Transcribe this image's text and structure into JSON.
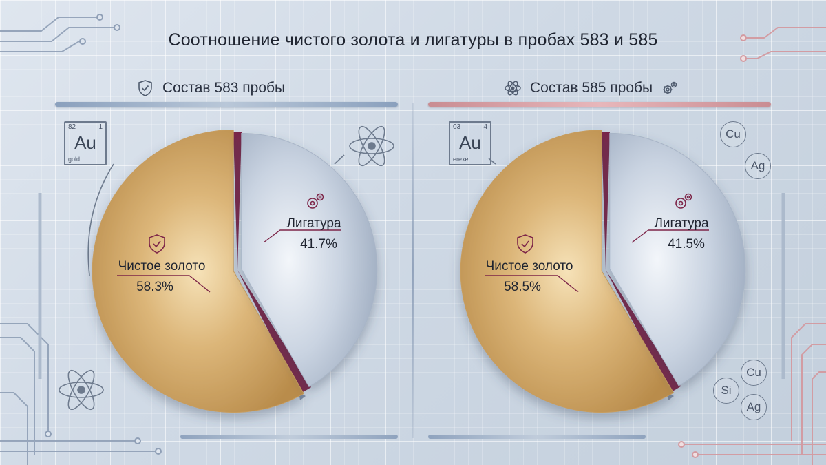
{
  "title": "Соотношение чистого золота и лигатуры в пробах 583 и 585",
  "colors": {
    "gold": "#d9b274",
    "alloy": "#c5d0df",
    "separator": "#7d2548",
    "accent_left": "#8aa0bd",
    "accent_right": "#c98c92"
  },
  "panels": [
    {
      "header": "Состав 583 пробы",
      "header_icon": "shield-check-icon",
      "element_box": {
        "number": "82",
        "weight": "1",
        "symbol": "Au",
        "name": "gold"
      }
    },
    {
      "header": "Состав 585 пробы",
      "header_icon": "atom-icon",
      "header_icon_right": "gears-icon",
      "element_box": {
        "number": "03",
        "weight": "4",
        "symbol": "Au",
        "name": "erexe"
      }
    }
  ],
  "chemical_symbols": {
    "top_right": [
      "Cu",
      "Ag"
    ],
    "bottom_right": [
      "Cu",
      "Si",
      "Ag"
    ]
  },
  "chart_data": [
    {
      "type": "pie",
      "title": "Состав 583 пробы",
      "categories": [
        "Чистое золото",
        "Лигатура"
      ],
      "values": [
        58.3,
        41.7
      ],
      "value_labels": [
        "58.3%",
        "41.7%"
      ],
      "colors": [
        "#d9b274",
        "#c5d0df"
      ],
      "icons": [
        "shield-check-icon",
        "gears-icon"
      ]
    },
    {
      "type": "pie",
      "title": "Состав 585 пробы",
      "categories": [
        "Чистое золото",
        "Лигатура"
      ],
      "values": [
        58.5,
        41.5
      ],
      "value_labels": [
        "58.5%",
        "41.5%"
      ],
      "colors": [
        "#d9b274",
        "#c5d0df"
      ],
      "icons": [
        "gear-badge-icon",
        "molecule-icon"
      ]
    }
  ]
}
